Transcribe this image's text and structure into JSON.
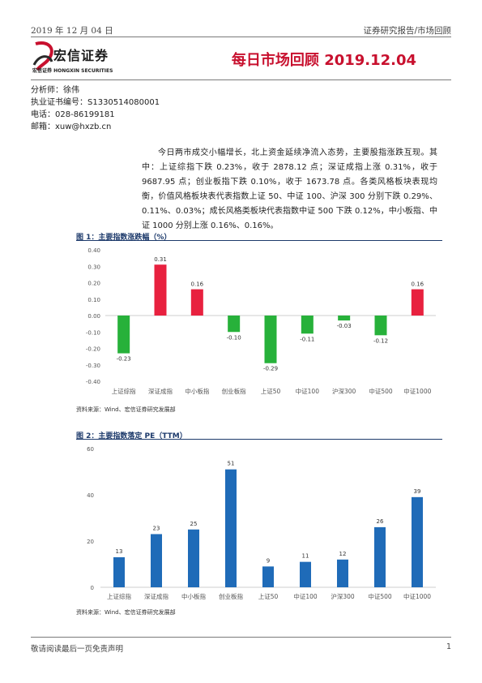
{
  "header": {
    "date": "2019 年 12 月 04 日",
    "category": "证券研究报告/市场回顾",
    "title": "每日市场回顾 2019.12.04"
  },
  "logo": {
    "name": "宏信证券",
    "sub": "宏信证券  HONGXIN SECURITIES"
  },
  "analyst": {
    "name": "分析师：徐伟",
    "license": "执业证书编号：S1330514080001",
    "phone": "电话：028-86199181",
    "email": "邮箱：xuw@hxzb.cn"
  },
  "summary": "今日两市成交小幅增长，北上资金延续净流入态势，主要股指涨跌互现。其中：上证综指下跌 0.23%，收于 2878.12 点；深证成指上涨 0.31%，收于 9687.95 点；创业板指下跌 0.10%，收于 1673.78 点。各类风格板块表现均衡，价值风格板块表代表指数上证 50、中证 100、沪深 300 分别下跌 0.29%、0.11%、0.03%；成长风格类板块代表指数中证 500 下跌 0.12%，中小板指、中证 1000 分别上涨 0.16%、0.16%。",
  "figures": {
    "fig1_title": "图 1：主要指数涨跌幅（%）",
    "fig2_title": "图 2：主要指数落定 PE（TTM）",
    "source1": "资料来源：Wind、宏信证券研究发展部",
    "source2": "资料来源：Wind、宏信证券研究发展部"
  },
  "chart_data": [
    {
      "type": "bar",
      "title": "图 1：主要指数涨跌幅（%）",
      "categories": [
        "上证综指",
        "深证成指",
        "中小板指",
        "创业板指",
        "上证50",
        "中证100",
        "沪深300",
        "中证500",
        "中证1000"
      ],
      "values": [
        -0.23,
        0.31,
        0.16,
        -0.1,
        -0.29,
        -0.11,
        -0.03,
        -0.12,
        0.16
      ],
      "data_labels": [
        "-0.23",
        "0.31",
        "0.16",
        "-0.10",
        "-0.29",
        "-0.11",
        "-0.03",
        "-0.12",
        "0.16"
      ],
      "ylim": [
        -0.4,
        0.4
      ],
      "yticks": [
        "0.40",
        "0.30",
        "0.20",
        "0.10",
        "0.00",
        "-0.10",
        "-0.20",
        "-0.30",
        "-0.40"
      ],
      "colors": {
        "positive": "#e8213f",
        "negative": "#27b13a"
      },
      "grid": false
    },
    {
      "type": "bar",
      "title": "图 2：主要指数落定 PE（TTM）",
      "categories": [
        "上证综指",
        "深证成指",
        "中小板指",
        "创业板指",
        "上证50",
        "中证100",
        "沪深300",
        "中证500",
        "中证1000"
      ],
      "values": [
        13,
        23,
        25,
        51,
        9,
        11,
        12,
        26,
        39
      ],
      "ylim": [
        0,
        60
      ],
      "yticks": [
        "60",
        "40",
        "20",
        "0"
      ],
      "colors": {
        "bar": "#1f6bb8"
      },
      "grid": false
    }
  ],
  "footer": {
    "disclaimer": "敬请阅读最后一页免责声明",
    "page": "1"
  }
}
